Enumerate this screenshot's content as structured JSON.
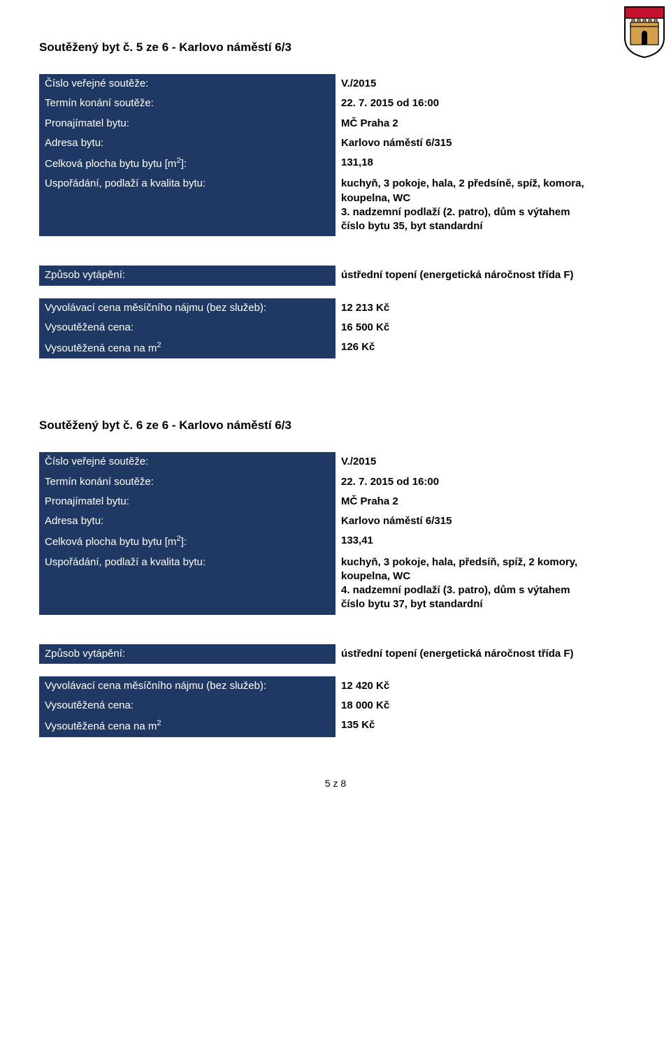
{
  "colors": {
    "label_bg": "#1f3864",
    "label_text": "#ffffff",
    "value_text": "#000000"
  },
  "crest": {
    "shield_border": "#000000",
    "shield_fill": "#ffffff",
    "wall_fill": "#d4a14a",
    "wall_outline": "#000000",
    "chief_fill": "#c8102e"
  },
  "listing1": {
    "title": "Soutěžený byt č. 5 ze 6 - Karlovo náměstí 6/3",
    "rows_top": [
      {
        "label": "Číslo veřejné soutěže:",
        "value": "V./2015"
      },
      {
        "label": "Termín konání soutěže:",
        "value": "22. 7. 2015 od 16:00"
      },
      {
        "label": "Pronajímatel bytu:",
        "value": "MČ Praha 2"
      },
      {
        "label": "Adresa bytu:",
        "value": "Karlovo náměstí 6/315"
      },
      {
        "label": "Celková plocha bytu bytu [m²]:",
        "value": "131,18"
      },
      {
        "label": "Uspořádání, podlaží a kvalita bytu:",
        "value": "kuchyň, 3 pokoje, hala, 2 předsíně, spíž, komora, koupelna, WC\n3. nadzemní podlaží (2. patro), dům s výtahem\nčíslo bytu 35, byt standardní"
      }
    ],
    "rows_mid": [
      {
        "label": "Způsob vytápění:",
        "value": "ústřední topení (energetická náročnost třída F)"
      }
    ],
    "rows_bot": [
      {
        "label": "Vyvolávací cena měsíčního nájmu (bez služeb):",
        "value": "12 213 Kč"
      },
      {
        "label": "Vysoutěžená cena:",
        "value": "16 500 Kč"
      },
      {
        "label": "Vysoutěžená cena na m²",
        "value": "126 Kč"
      }
    ]
  },
  "listing2": {
    "title": "Soutěžený byt č. 6 ze 6 - Karlovo náměstí 6/3",
    "rows_top": [
      {
        "label": "Číslo veřejné soutěže:",
        "value": "V./2015"
      },
      {
        "label": "Termín konání soutěže:",
        "value": "22. 7. 2015 od 16:00"
      },
      {
        "label": "Pronajímatel bytu:",
        "value": "MČ Praha 2"
      },
      {
        "label": "Adresa bytu:",
        "value": "Karlovo náměstí 6/315"
      },
      {
        "label": "Celková plocha bytu bytu [m²]:",
        "value": "133,41"
      },
      {
        "label": "Uspořádání, podlaží a kvalita bytu:",
        "value": "kuchyň, 3 pokoje, hala, předsíň, spíž, 2 komory, koupelna, WC\n4. nadzemní podlaží (3. patro), dům s výtahem\nčíslo bytu 37, byt standardní"
      }
    ],
    "rows_mid": [
      {
        "label": "Způsob vytápění:",
        "value": "ústřední topení (energetická náročnost třída F)"
      }
    ],
    "rows_bot": [
      {
        "label": "Vyvolávací cena měsíčního nájmu (bez služeb):",
        "value": "12 420 Kč"
      },
      {
        "label": "Vysoutěžená cena:",
        "value": "18 000 Kč"
      },
      {
        "label": "Vysoutěžená cena na m²",
        "value": "135 Kč"
      }
    ]
  },
  "footer": "5 z 8"
}
